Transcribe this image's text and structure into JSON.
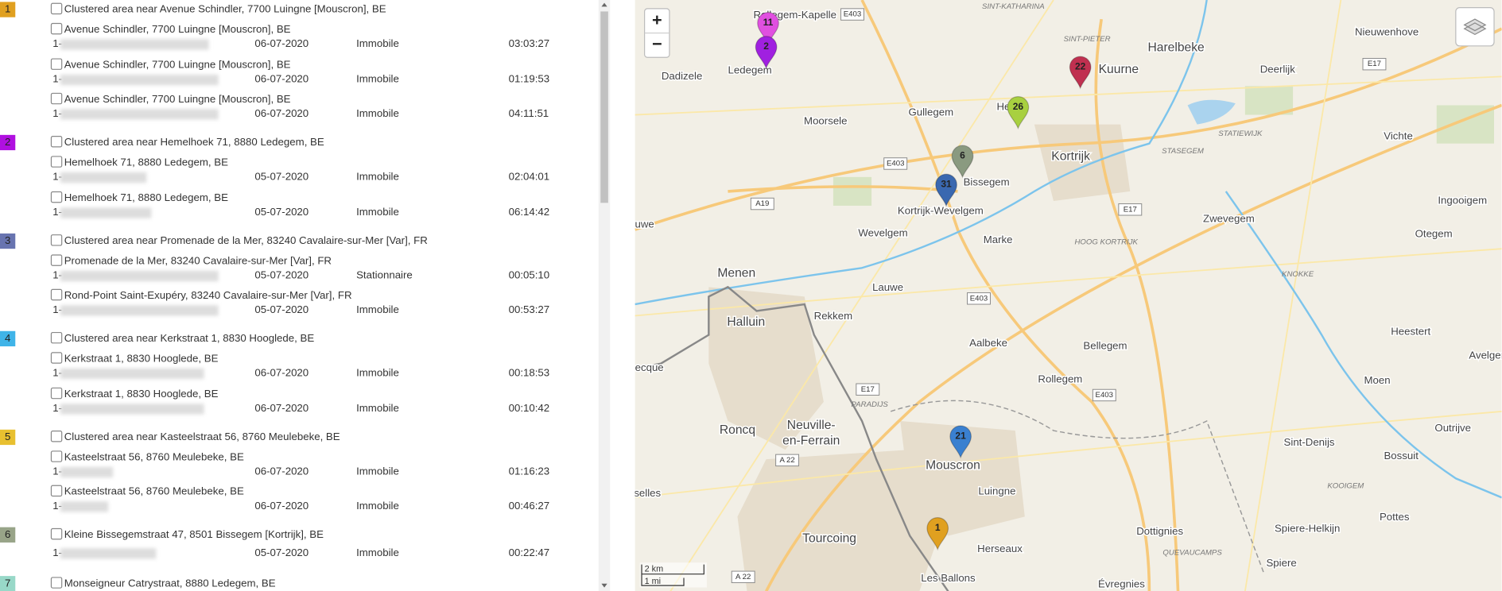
{
  "list": [
    {
      "number": "1",
      "color": "#e0a020",
      "title": "Clustered area near Avenue Schindler, 7700 Luingne [Mouscron], BE",
      "items": [
        {
          "address": "Avenue Schindler, 7700 Luingne [Mouscron], BE",
          "id": "1-",
          "date": "06-07-2020",
          "status": "Immobile",
          "time": "03:03:27"
        },
        {
          "address": "Avenue Schindler, 7700 Luingne [Mouscron], BE",
          "id": "1-",
          "date": "06-07-2020",
          "status": "Immobile",
          "time": "01:19:53"
        },
        {
          "address": "Avenue Schindler, 7700 Luingne [Mouscron], BE",
          "id": "1-",
          "date": "06-07-2020",
          "status": "Immobile",
          "time": "04:11:51"
        }
      ]
    },
    {
      "number": "2",
      "color": "#b010e0",
      "title": "Clustered area near Hemelhoek 71, 8880 Ledegem, BE",
      "items": [
        {
          "address": "Hemelhoek 71, 8880 Ledegem, BE",
          "id": "1-",
          "date": "05-07-2020",
          "status": "Immobile",
          "time": "02:04:01"
        },
        {
          "address": "Hemelhoek 71, 8880 Ledegem, BE",
          "id": "1-",
          "date": "05-07-2020",
          "status": "Immobile",
          "time": "06:14:42"
        }
      ]
    },
    {
      "number": "3",
      "color": "#6874b0",
      "title": "Clustered area near Promenade de la Mer, 83240 Cavalaire-sur-Mer [Var], FR",
      "items": [
        {
          "address": "Promenade de la Mer, 83240 Cavalaire-sur-Mer [Var], FR",
          "id": "1-",
          "date": "05-07-2020",
          "status": "Stationnaire",
          "time": "00:05:10"
        },
        {
          "address": "Rond-Point Saint-Exupéry, 83240 Cavalaire-sur-Mer [Var], FR",
          "id": "1-",
          "date": "05-07-2020",
          "status": "Immobile",
          "time": "00:53:27"
        }
      ]
    },
    {
      "number": "4",
      "color": "#40b4e8",
      "title": "Clustered area near Kerkstraat 1, 8830 Hooglede, BE",
      "items": [
        {
          "address": "Kerkstraat 1, 8830 Hooglede, BE",
          "id": "1-",
          "date": "06-07-2020",
          "status": "Immobile",
          "time": "00:18:53"
        },
        {
          "address": "Kerkstraat 1, 8830 Hooglede, BE",
          "id": "1-",
          "date": "06-07-2020",
          "status": "Immobile",
          "time": "00:10:42"
        }
      ]
    },
    {
      "number": "5",
      "color": "#e8c030",
      "title": "Clustered area near Kasteelstraat 56, 8760 Meulebeke, BE",
      "items": [
        {
          "address": "Kasteelstraat 56, 8760 Meulebeke, BE",
          "id": "1-",
          "date": "06-07-2020",
          "status": "Immobile",
          "time": "01:16:23"
        },
        {
          "address": "Kasteelstraat 56, 8760 Meulebeke, BE",
          "id": "1-",
          "date": "06-07-2020",
          "status": "Immobile",
          "time": "00:46:27"
        }
      ]
    },
    {
      "number": "6",
      "color": "#98a488",
      "title": "Kleine Bissegemstraat 47, 8501 Bissegem [Kortrijk], BE",
      "items": [
        {
          "id": "1-",
          "date": "05-07-2020",
          "status": "Immobile",
          "time": "00:22:47"
        }
      ]
    },
    {
      "number": "7",
      "color": "#98d8c8",
      "title": "Monseigneur Catrystraat, 8880 Ledegem, BE",
      "items": []
    }
  ],
  "map": {
    "zoom_in": "+",
    "zoom_out": "−",
    "scale_km": "2 km",
    "scale_mi": "1 mi",
    "markers": [
      {
        "label": "11",
        "color": "#e050e0"
      },
      {
        "label": "2",
        "color": "#a020e0"
      },
      {
        "label": "22",
        "color": "#c03050"
      },
      {
        "label": "26",
        "color": "#a8d040"
      },
      {
        "label": "6",
        "color": "#8a9a80"
      },
      {
        "label": "31",
        "color": "#3a68b0"
      },
      {
        "label": "21",
        "color": "#3a80d0"
      },
      {
        "label": "1",
        "color": "#e0a020"
      }
    ],
    "places": [
      "Rollegem-Kapelle",
      "Ledegem",
      "Dadizele",
      "Harelbeke",
      "Nieuwenhove",
      "Kuurne",
      "Deerlijk",
      "Moorsele",
      "Gullegem",
      "Heule",
      "Kortrijk",
      "Vichte",
      "Bissegem",
      "Kortrijk-Wevelgem",
      "Zwevegem",
      "Ingooigem",
      "Otegem",
      "Wevelgem",
      "Marke",
      "Menen",
      "Lauwe",
      "Halluin",
      "Rekkem",
      "Heestert",
      "Aalbeke",
      "Bellegem",
      "Avelgem",
      "Rollegem",
      "Moen",
      "Roncq",
      "Neuville-",
      "en-Ferrain",
      "Mouscron",
      "Outrijve",
      "Sint-Denijs",
      "Bossuit",
      "Luingne",
      "Tourcoing",
      "Herseaux",
      "Dottignies",
      "Pottes",
      "Spiere-Helkijn",
      "Spiere",
      "Les Ballons",
      "Évregnies",
      "uwe",
      "ecque",
      "selles"
    ],
    "areas": [
      "SINT-KATHARINA",
      "SINT-PIETER",
      "STATIEWIJK",
      "STASEGEM",
      "HOOG KORTRIJK",
      "KNOKKE",
      "PARADIJS",
      "KOOIGEM",
      "QUEVAUCAMPS"
    ],
    "road_labels": [
      "E403",
      "E17",
      "E403",
      "A19",
      "E17",
      "E403",
      "E403",
      "E17",
      "A 22",
      "A 22"
    ]
  }
}
